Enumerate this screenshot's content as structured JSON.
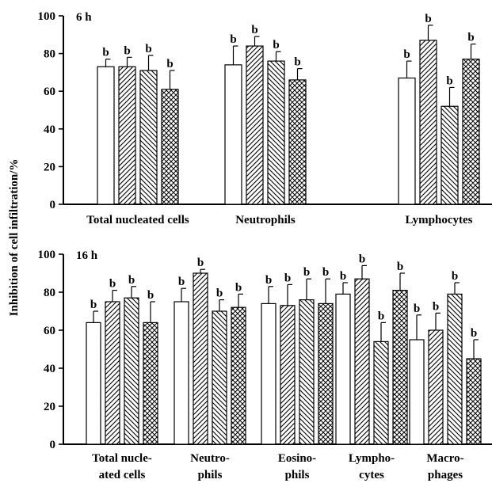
{
  "chart_data": {
    "type": "bar",
    "ylabel": "Inhibition of cell infiltration/%",
    "patterns": [
      "open",
      "hatch-forward",
      "hatch-backward",
      "crosshatch"
    ],
    "panels": [
      {
        "title": "6 h",
        "ylim": [
          0,
          100
        ],
        "yticks": [
          "0",
          "20",
          "40",
          "60",
          "80",
          "100"
        ],
        "categories": [
          {
            "lines": [
              "Total nucleated cells"
            ],
            "values": [
              73,
              73,
              71,
              61
            ],
            "errors": [
              4,
              5,
              8,
              10
            ],
            "labels": [
              "b",
              "b",
              "b",
              "b"
            ]
          },
          {
            "lines": [
              "Neutrophils"
            ],
            "values": [
              74,
              84,
              76,
              66
            ],
            "errors": [
              10,
              5,
              5,
              6
            ],
            "labels": [
              "b",
              "b",
              "b",
              "b"
            ]
          },
          {
            "lines": [
              "Lymphocytes"
            ],
            "values": [
              67,
              87,
              52,
              77
            ],
            "errors": [
              9,
              8,
              10,
              8
            ],
            "labels": [
              "b",
              "b",
              "b",
              "b"
            ]
          }
        ]
      },
      {
        "title": "16 h",
        "ylim": [
          0,
          100
        ],
        "yticks": [
          "0",
          "20",
          "40",
          "60",
          "80",
          "100"
        ],
        "categories": [
          {
            "lines": [
              "Total nucle-",
              "ated cells"
            ],
            "values": [
              64,
              75,
              77,
              64
            ],
            "errors": [
              6,
              6,
              6,
              11
            ],
            "labels": [
              "b",
              "b",
              "b",
              "b"
            ]
          },
          {
            "lines": [
              "Neutro-",
              "phils"
            ],
            "values": [
              75,
              90,
              70,
              72
            ],
            "errors": [
              7,
              2,
              6,
              7
            ],
            "labels": [
              "b",
              "b",
              "b",
              "b"
            ]
          },
          {
            "lines": [
              "Eosino-",
              "phils"
            ],
            "values": [
              74,
              73,
              76,
              74
            ],
            "errors": [
              9,
              11,
              11,
              13
            ],
            "labels": [
              "b",
              "b",
              "b",
              "b"
            ]
          },
          {
            "lines": [
              "Lympho-",
              "cytes"
            ],
            "values": [
              79,
              87,
              54,
              81
            ],
            "errors": [
              6,
              7,
              10,
              9
            ],
            "labels": [
              "b",
              "b",
              "b",
              "b"
            ]
          },
          {
            "lines": [
              "Macro-",
              "phages"
            ],
            "values": [
              55,
              60,
              79,
              45
            ],
            "errors": [
              13,
              9,
              6,
              10
            ],
            "labels": [
              "b",
              "b",
              "b",
              "b"
            ]
          }
        ]
      }
    ]
  }
}
